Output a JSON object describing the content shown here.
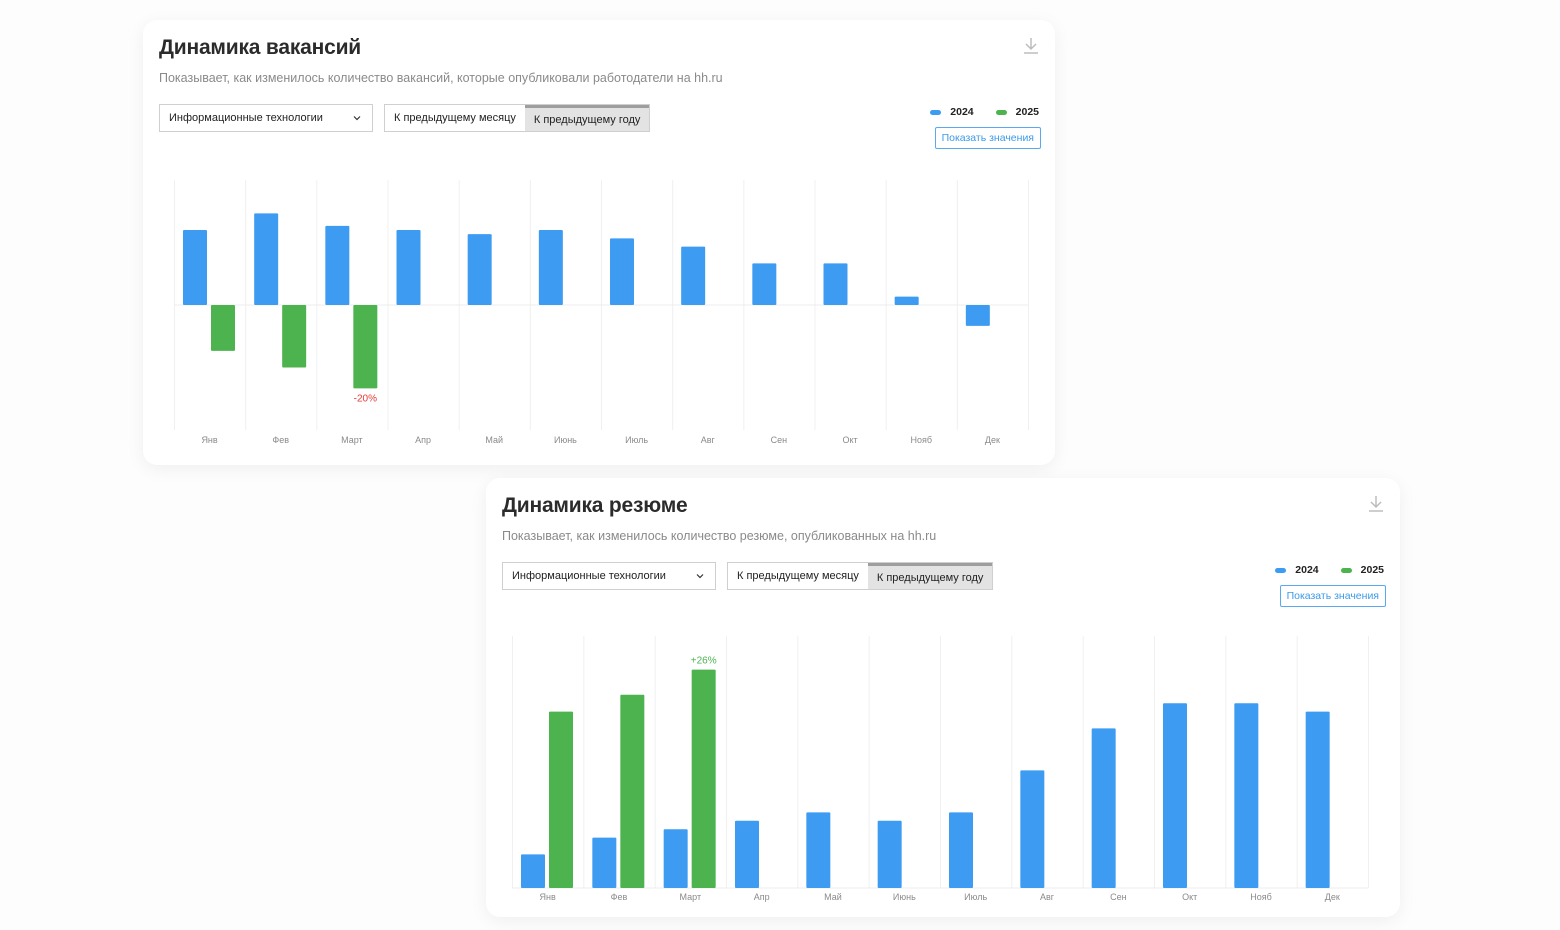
{
  "colors": {
    "y2024": "#3d9cf2",
    "y2025": "#4cb34f",
    "negative_label": "#e53935",
    "positive_label": "#4cb34f",
    "grid": "#f0f0f0"
  },
  "cards": [
    {
      "title": "Динамика вакансий",
      "subtitle": "Показывает, как изменилось количество вакансий, которые опубликовали работодатели на hh.ru",
      "dropdown": "Информационные технологии",
      "seg_month": "К предыдущему месяцу",
      "seg_year": "К предыдущему году",
      "legend_2024": "2024",
      "legend_2025": "2025",
      "show_values": "Показать значения",
      "download_icon": "download-icon"
    },
    {
      "title": "Динамика резюме",
      "subtitle": "Показывает, как изменилось количество резюме, опубликованных на hh.ru",
      "dropdown": "Информационные технологии",
      "seg_month": "К предыдущему месяцу",
      "seg_year": "К предыдущему году",
      "legend_2024": "2024",
      "legend_2025": "2025",
      "show_values": "Показать значения",
      "download_icon": "download-icon"
    }
  ],
  "chart_data": [
    {
      "type": "bar",
      "title": "Динамика вакансий",
      "categories": [
        "Янв",
        "Фев",
        "Март",
        "Апр",
        "Май",
        "Июнь",
        "Июль",
        "Авг",
        "Сен",
        "Окт",
        "Нояб",
        "Дек"
      ],
      "series": [
        {
          "name": "2024",
          "values": [
            18,
            22,
            19,
            18,
            17,
            18,
            16,
            14,
            10,
            10,
            2,
            -5
          ]
        },
        {
          "name": "2025",
          "values": [
            -11,
            -15,
            -20,
            null,
            null,
            null,
            null,
            null,
            null,
            null,
            null,
            null
          ]
        }
      ],
      "annotations": [
        {
          "category": "Март",
          "series": "2025",
          "text": "-20%"
        }
      ],
      "ylim": [
        -30,
        30
      ],
      "grid": "vertical",
      "legend": "top-right",
      "unit": "%"
    },
    {
      "type": "bar",
      "title": "Динамика резюме",
      "categories": [
        "Янв",
        "Фев",
        "Март",
        "Апр",
        "Май",
        "Июнь",
        "Июль",
        "Авг",
        "Сен",
        "Окт",
        "Нояб",
        "Дек"
      ],
      "series": [
        {
          "name": "2024",
          "values": [
            4,
            6,
            7,
            8,
            9,
            8,
            9,
            14,
            19,
            22,
            22,
            21
          ]
        },
        {
          "name": "2025",
          "values": [
            21,
            23,
            26,
            null,
            null,
            null,
            null,
            null,
            null,
            null,
            null,
            null
          ]
        }
      ],
      "annotations": [
        {
          "category": "Март",
          "series": "2025",
          "text": "+26%"
        }
      ],
      "ylim": [
        0,
        30
      ],
      "grid": "vertical",
      "legend": "top-right",
      "unit": "%"
    }
  ]
}
